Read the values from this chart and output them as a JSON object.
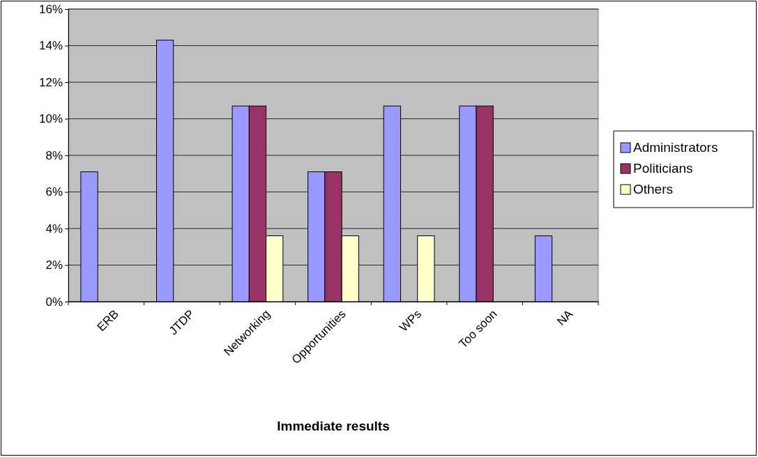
{
  "chart_data": {
    "type": "bar",
    "xlabel": "Immediate results",
    "categories": [
      "ERB",
      "JTDP",
      "Networking",
      "Opportunities",
      "WPs",
      "Too soon",
      "NA"
    ],
    "series": [
      {
        "name": "Administrators",
        "color": "#9999ff",
        "values": [
          7.1,
          14.3,
          10.7,
          7.1,
          10.7,
          10.7,
          3.6
        ]
      },
      {
        "name": "Politicians",
        "color": "#993366",
        "values": [
          0,
          0,
          10.7,
          7.1,
          0,
          10.7,
          0
        ]
      },
      {
        "name": "Others",
        "color": "#ffffcc",
        "values": [
          0,
          0,
          3.6,
          3.6,
          3.6,
          0,
          0
        ]
      }
    ],
    "ylim": [
      0,
      16
    ],
    "yticks": [
      {
        "value": 0,
        "label": "0%"
      },
      {
        "value": 2,
        "label": "2%"
      },
      {
        "value": 4,
        "label": "4%"
      },
      {
        "value": 6,
        "label": "6%"
      },
      {
        "value": 8,
        "label": "8%"
      },
      {
        "value": 10,
        "label": "10%"
      },
      {
        "value": 12,
        "label": "12%"
      },
      {
        "value": 14,
        "label": "14%"
      },
      {
        "value": 16,
        "label": "16%"
      }
    ],
    "grid": "y",
    "legend": "right"
  }
}
